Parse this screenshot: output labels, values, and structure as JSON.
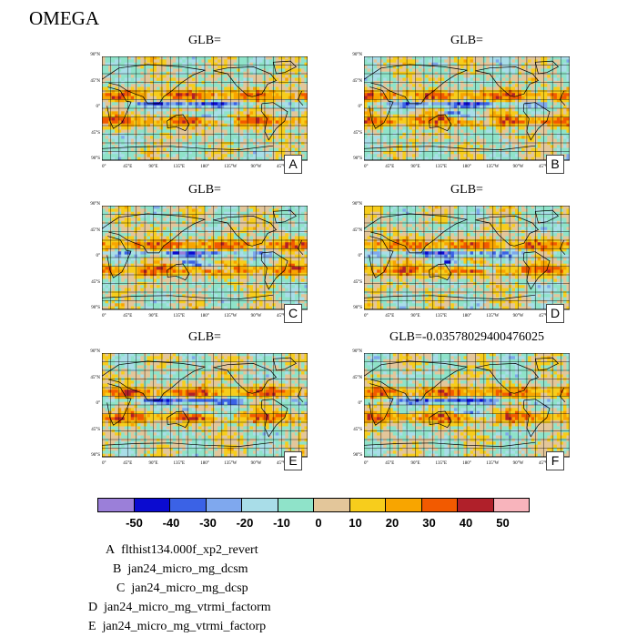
{
  "figure": {
    "title": "OMEGA"
  },
  "panels": [
    {
      "letter": "A",
      "title": "GLB="
    },
    {
      "letter": "B",
      "title": "GLB="
    },
    {
      "letter": "C",
      "title": "GLB="
    },
    {
      "letter": "D",
      "title": "GLB="
    },
    {
      "letter": "E",
      "title": "GLB="
    },
    {
      "letter": "F",
      "title": "GLB=-0.03578029400476025"
    }
  ],
  "axes": {
    "lat_labels": [
      "90°N",
      "45°N",
      "0°",
      "45°S",
      "90°S"
    ],
    "lon_labels": [
      "0°",
      "45°E",
      "90°E",
      "135°E",
      "180°",
      "135°W",
      "90°W",
      "45°W"
    ]
  },
  "colorbar": {
    "colors": [
      "#9b7fd9",
      "#0b0bd0",
      "#3b62e6",
      "#7fa8ee",
      "#a9dde8",
      "#8fe3c9",
      "#e3c69a",
      "#f7cd1c",
      "#f8a500",
      "#f25a00",
      "#b0202a",
      "#f8b4bc"
    ],
    "labels": [
      "-50",
      "-40",
      "-30",
      "-20",
      "-10",
      "0",
      "10",
      "20",
      "30",
      "40",
      "50"
    ]
  },
  "legend": [
    {
      "letter": "A",
      "name": "flthist134.000f_xp2_revert"
    },
    {
      "letter": "B",
      "name": "jan24_micro_mg_dcsm"
    },
    {
      "letter": "C",
      "name": "jan24_micro_mg_dcsp"
    },
    {
      "letter": "D",
      "name": "jan24_micro_mg_vtrmi_factorm"
    },
    {
      "letter": "E",
      "name": "jan24_micro_mg_vtrmi_factorp"
    }
  ]
}
